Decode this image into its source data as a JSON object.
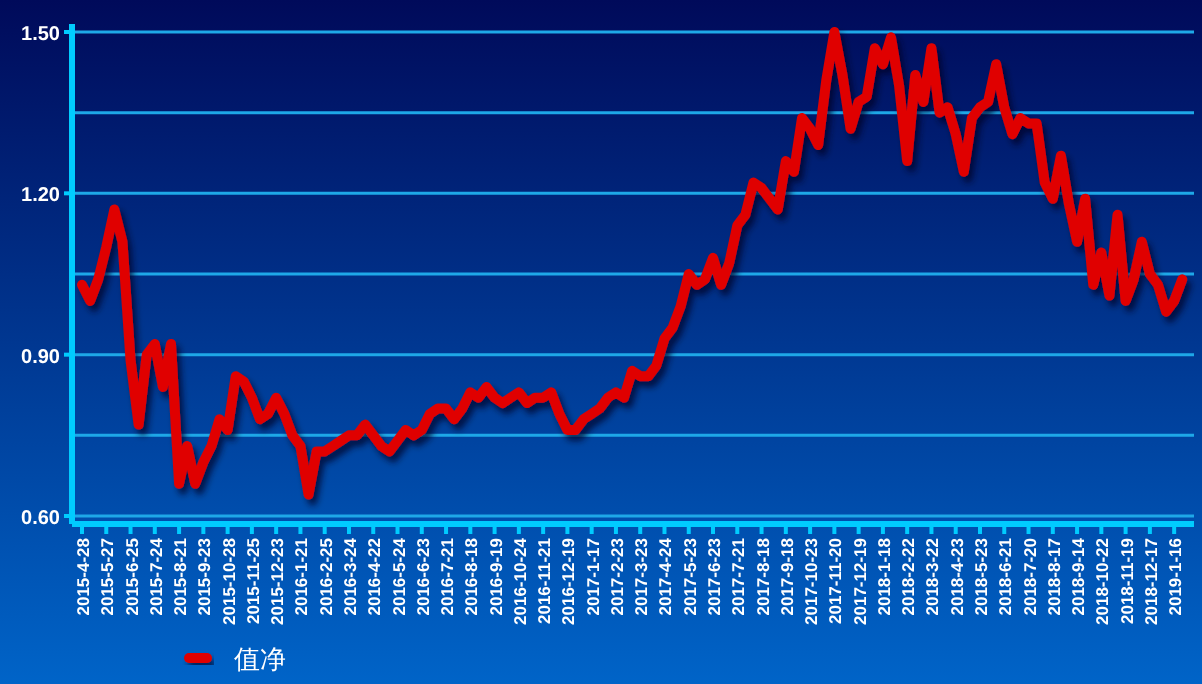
{
  "chart_data": {
    "type": "line",
    "categories": [
      "2015-4-28",
      null,
      null,
      "2015-5-27",
      null,
      null,
      "2015-6-25",
      null,
      null,
      "2015-7-24",
      null,
      null,
      "2015-8-21",
      null,
      null,
      "2015-9-23",
      null,
      null,
      "2015-10-28",
      null,
      null,
      "2015-11-25",
      null,
      null,
      "2015-12-23",
      null,
      null,
      "2016-1-21",
      null,
      null,
      "2016-2-25",
      null,
      null,
      "2016-3-24",
      null,
      null,
      "2016-4-22",
      null,
      null,
      "2016-5-24",
      null,
      null,
      "2016-6-23",
      null,
      null,
      "2016-7-21",
      null,
      null,
      "2016-8-18",
      null,
      null,
      "2016-9-19",
      null,
      null,
      "2016-10-24",
      null,
      null,
      "2016-11-21",
      null,
      null,
      "2016-12-19",
      null,
      null,
      "2017-1-17",
      null,
      null,
      "2017-2-23",
      null,
      null,
      "2017-3-23",
      null,
      null,
      "2017-4-24",
      null,
      null,
      "2017-5-23",
      null,
      null,
      "2017-6-23",
      null,
      null,
      "2017-7-21",
      null,
      null,
      "2017-8-18",
      null,
      null,
      "2017-9-18",
      null,
      null,
      "2017-10-23",
      null,
      null,
      "2017-11-20",
      null,
      null,
      "2017-12-19",
      null,
      null,
      "2018-1-18",
      null,
      null,
      "2018-2-22",
      null,
      null,
      "2018-3-22",
      null,
      null,
      "2018-4-23",
      null,
      null,
      "2018-5-23",
      null,
      null,
      "2018-6-21",
      null,
      null,
      "2018-7-20",
      null,
      null,
      "2018-8-17",
      null,
      null,
      "2018-9-14",
      null,
      null,
      "2018-10-22",
      null,
      null,
      "2018-11-19",
      null,
      null,
      "2018-12-17",
      null,
      null,
      "2019-1-16",
      null
    ],
    "series": [
      {
        "name": "值净",
        "color": "#e00000",
        "values": [
          1.03,
          1.0,
          1.04,
          1.1,
          1.17,
          1.11,
          0.89,
          0.77,
          0.9,
          0.92,
          0.84,
          0.92,
          0.66,
          0.73,
          0.66,
          0.7,
          0.73,
          0.78,
          0.76,
          0.86,
          0.85,
          0.82,
          0.78,
          0.79,
          0.82,
          0.79,
          0.75,
          0.73,
          0.64,
          0.72,
          0.72,
          0.73,
          0.74,
          0.75,
          0.75,
          0.77,
          0.75,
          0.73,
          0.72,
          0.74,
          0.76,
          0.75,
          0.76,
          0.79,
          0.8,
          0.8,
          0.78,
          0.8,
          0.83,
          0.82,
          0.84,
          0.82,
          0.81,
          0.82,
          0.83,
          0.81,
          0.82,
          0.82,
          0.83,
          0.79,
          0.76,
          0.76,
          0.78,
          0.79,
          0.8,
          0.82,
          0.83,
          0.82,
          0.87,
          0.86,
          0.86,
          0.88,
          0.93,
          0.95,
          0.99,
          1.05,
          1.03,
          1.04,
          1.08,
          1.03,
          1.07,
          1.14,
          1.16,
          1.22,
          1.21,
          1.19,
          1.17,
          1.26,
          1.24,
          1.34,
          1.32,
          1.29,
          1.41,
          1.5,
          1.42,
          1.32,
          1.37,
          1.38,
          1.47,
          1.44,
          1.49,
          1.4,
          1.26,
          1.42,
          1.37,
          1.47,
          1.35,
          1.36,
          1.31,
          1.24,
          1.34,
          1.36,
          1.37,
          1.44,
          1.36,
          1.31,
          1.34,
          1.33,
          1.33,
          1.22,
          1.19,
          1.27,
          1.18,
          1.11,
          1.19,
          1.03,
          1.09,
          1.01,
          1.16,
          1.0,
          1.04,
          1.11,
          1.05,
          1.03,
          0.98,
          1.0,
          1.04
        ]
      }
    ],
    "ylim": [
      0.6,
      1.5
    ],
    "yticks": [
      {
        "value": 0.6,
        "label": "0.60"
      },
      {
        "value": 0.75,
        "label": null
      },
      {
        "value": 0.9,
        "label": "0.90"
      },
      {
        "value": 1.05,
        "label": null
      },
      {
        "value": 1.2,
        "label": "1.20"
      },
      {
        "value": 1.35,
        "label": null
      },
      {
        "value": 1.5,
        "label": "1.50"
      }
    ],
    "grid": "y",
    "legend": "bottom"
  }
}
